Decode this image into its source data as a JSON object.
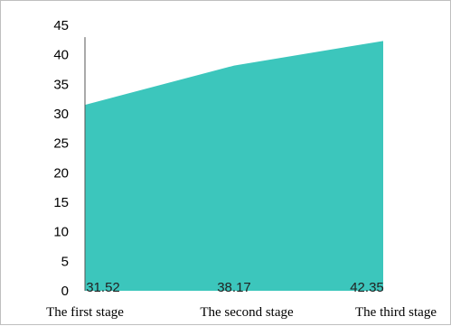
{
  "chart_data": {
    "type": "area",
    "categories": [
      "The first stage",
      "The second stage",
      "The third stage"
    ],
    "series": [
      {
        "values": [
          31.52,
          38.17,
          42.35
        ]
      }
    ],
    "data_labels": [
      "31.52",
      "38.17",
      "42.35"
    ],
    "ylim": [
      0,
      45
    ],
    "yticks": [
      0,
      5,
      10,
      15,
      20,
      25,
      30,
      35,
      40,
      45
    ],
    "grid": false,
    "legend": "none",
    "fill_color": "#3cc6bc"
  }
}
